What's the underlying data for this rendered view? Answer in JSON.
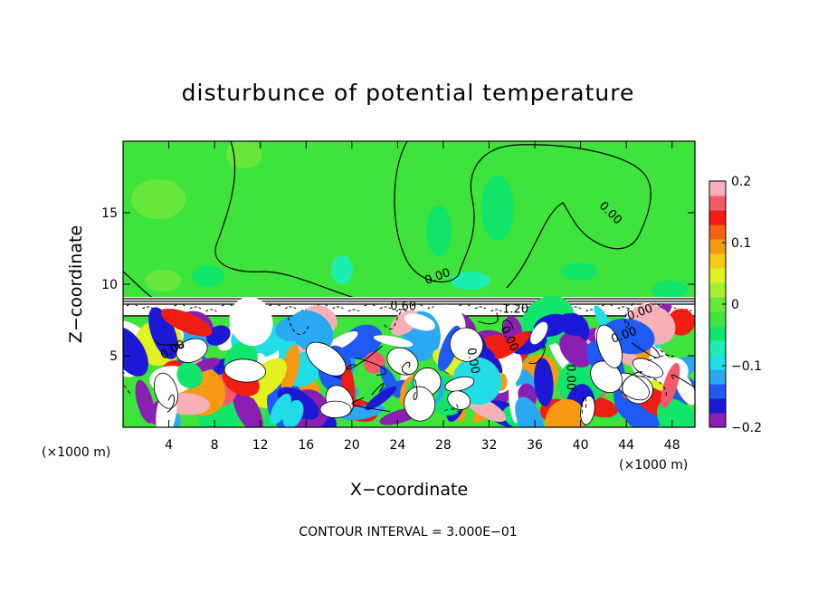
{
  "chart_data": {
    "type": "heatmap",
    "title": "disturbunce of potential temperature",
    "xlabel": "X−coordinate",
    "ylabel": "Z−coordinate",
    "x_unit": "(×1000 m)",
    "y_unit": "(×1000 m)",
    "xlim": [
      0,
      50
    ],
    "ylim": [
      0,
      20
    ],
    "x_ticks": [
      4,
      8,
      12,
      16,
      20,
      24,
      28,
      32,
      36,
      40,
      44,
      48
    ],
    "x_tick_labels": [
      "4",
      "8",
      "12",
      "16",
      "20",
      "24",
      "28",
      "32",
      "36",
      "40",
      "44",
      "48"
    ],
    "y_ticks": [
      5,
      10,
      15
    ],
    "y_tick_labels": [
      "5",
      "10",
      "15"
    ],
    "colorbar": {
      "range": [
        -0.2,
        0.2
      ],
      "ticks": [
        0.2,
        0.1,
        0,
        -0.1,
        -0.2
      ],
      "tick_labels": [
        "0.2",
        "0.1",
        "0",
        "−0.1",
        "−0.2"
      ],
      "colors": [
        "#8a1fb2",
        "#1c19d6",
        "#1f5af2",
        "#2aa8f2",
        "#22dde6",
        "#1cefb0",
        "#11e56a",
        "#3ee43b",
        "#66e83a",
        "#a6ef2e",
        "#e1f21e",
        "#f4cd18",
        "#f59a12",
        "#f2620f",
        "#ef1d12",
        "#f45a6a",
        "#f6b0b6"
      ]
    },
    "contour_interval_text": "CONTOUR INTERVAL = 3.000E−01",
    "contour_labels": [
      {
        "text": "0.00",
        "x": 4.5,
        "y": 5.2,
        "angle": -30
      },
      {
        "text": "0.00",
        "x": 27.6,
        "y": 10.3,
        "angle": -20
      },
      {
        "text": "0.00",
        "x": 42.4,
        "y": 14.8,
        "angle": 45
      },
      {
        "text": "0.60",
        "x": 24.5,
        "y": 8.2,
        "angle": 0
      },
      {
        "text": "1.20",
        "x": 34.3,
        "y": 8.0,
        "angle": 0
      },
      {
        "text": "0.00",
        "x": 33.5,
        "y": 6.1,
        "angle": 65
      },
      {
        "text": "0.00",
        "x": 30.3,
        "y": 4.6,
        "angle": 80
      },
      {
        "text": "0.00",
        "x": 38.8,
        "y": 3.5,
        "angle": 90
      },
      {
        "text": "0.00",
        "x": 43.9,
        "y": 6.2,
        "angle": -20
      },
      {
        "text": "0.00",
        "x": 45.3,
        "y": 7.8,
        "angle": -20
      }
    ]
  }
}
